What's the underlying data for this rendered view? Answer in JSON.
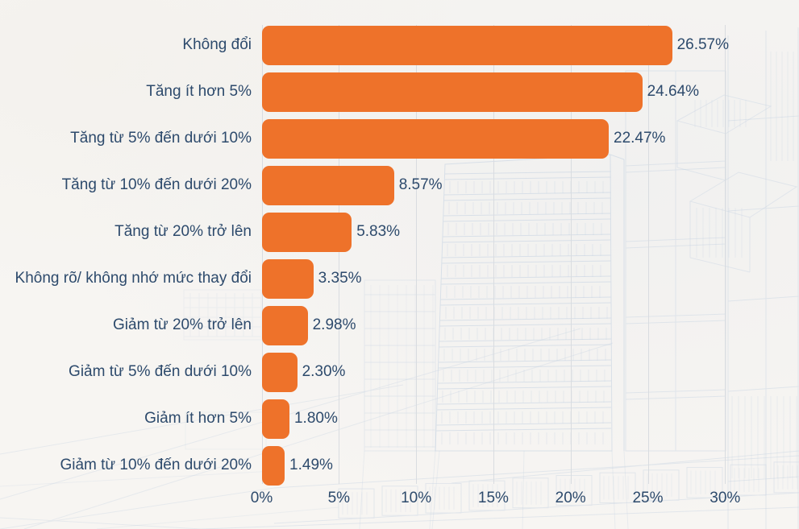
{
  "chart_data": {
    "type": "bar",
    "orientation": "horizontal",
    "categories": [
      "Không đổi",
      "Tăng ít hơn 5%",
      "Tăng từ 5% đến dưới 10%",
      "Tăng từ 10% đến dưới 20%",
      "Tăng từ 20% trở lên",
      "Không rõ/ không nhớ mức thay đổi",
      "Giảm từ 20% trở lên",
      "Giảm từ 5% đến dưới 10%",
      "Giảm ít hơn 5%",
      "Giảm từ 10% đến dưới 20%"
    ],
    "values": [
      26.57,
      24.64,
      22.47,
      8.57,
      5.83,
      3.35,
      2.98,
      2.3,
      1.8,
      1.49
    ],
    "value_labels": [
      "26.57%",
      "24.64%",
      "22.47%",
      "8.57%",
      "5.83%",
      "3.35%",
      "2.98%",
      "2.30%",
      "1.80%",
      "1.49%"
    ],
    "x_ticks": [
      "0%",
      "5%",
      "10%",
      "15%",
      "20%",
      "25%",
      "30%"
    ],
    "x_tick_values": [
      0,
      5,
      10,
      15,
      20,
      25,
      30
    ],
    "xlim": [
      0,
      30
    ],
    "grid": true,
    "legend": false,
    "title": ""
  },
  "colors": {
    "bar": "#ee722a",
    "label_text": "#2d4a6c",
    "gridline": "#d9dce0",
    "background": "#f7f5f2",
    "sketch_line": "#c3d1e1"
  }
}
